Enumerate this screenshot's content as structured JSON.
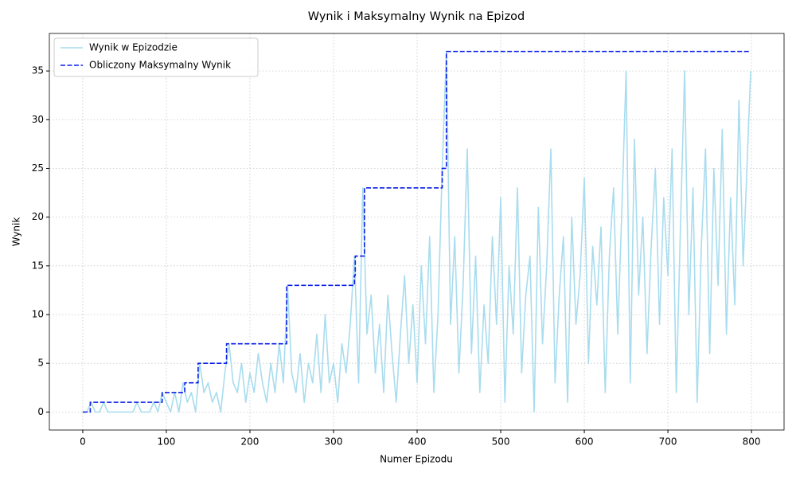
{
  "chart_data": {
    "type": "line",
    "title": "Wynik i Maksymalny Wynik na Epizod",
    "xlabel": "Numer Epizodu",
    "ylabel": "Wynik",
    "xlim": [
      -39.95,
      838.95
    ],
    "ylim": [
      -1.85,
      38.85
    ],
    "xticks": [
      0,
      100,
      200,
      300,
      400,
      500,
      600,
      700,
      800
    ],
    "yticks": [
      0,
      5,
      10,
      15,
      20,
      25,
      30,
      35
    ],
    "grid": true,
    "legend": "upper left",
    "series": [
      {
        "name": "Wynik w Epizodzie",
        "color": "#a8dcee",
        "linestyle": "solid",
        "drawstyle": "default",
        "x": [
          0,
          5,
          10,
          15,
          20,
          25,
          30,
          35,
          40,
          45,
          50,
          55,
          60,
          65,
          70,
          75,
          80,
          85,
          90,
          95,
          100,
          105,
          110,
          115,
          120,
          125,
          130,
          135,
          140,
          145,
          150,
          155,
          160,
          165,
          170,
          175,
          180,
          185,
          190,
          195,
          200,
          205,
          210,
          215,
          220,
          225,
          230,
          235,
          240,
          245,
          250,
          255,
          260,
          265,
          270,
          275,
          280,
          285,
          290,
          295,
          300,
          305,
          310,
          315,
          320,
          325,
          330,
          335,
          340,
          345,
          350,
          355,
          360,
          365,
          370,
          375,
          380,
          385,
          390,
          395,
          400,
          405,
          410,
          415,
          420,
          425,
          430,
          435,
          440,
          445,
          450,
          455,
          460,
          465,
          470,
          475,
          480,
          485,
          490,
          495,
          500,
          505,
          510,
          515,
          520,
          525,
          530,
          535,
          540,
          545,
          550,
          555,
          560,
          565,
          570,
          575,
          580,
          585,
          590,
          595,
          600,
          605,
          610,
          615,
          620,
          625,
          630,
          635,
          640,
          645,
          650,
          655,
          660,
          665,
          670,
          675,
          680,
          685,
          690,
          695,
          700,
          705,
          710,
          715,
          720,
          725,
          730,
          735,
          740,
          745,
          750,
          755,
          760,
          765,
          770,
          775,
          780,
          785,
          790,
          795,
          799
        ],
        "values": [
          0,
          0,
          1,
          0,
          0,
          1,
          0,
          0,
          0,
          0,
          0,
          0,
          0,
          1,
          0,
          0,
          0,
          1,
          0,
          2,
          1,
          0,
          2,
          0,
          3,
          1,
          2,
          0,
          5,
          2,
          3,
          1,
          2,
          0,
          4,
          7,
          3,
          2,
          5,
          1,
          4,
          2,
          6,
          3,
          1,
          5,
          2,
          7,
          3,
          13,
          4,
          2,
          6,
          1,
          5,
          3,
          8,
          2,
          10,
          3,
          5,
          1,
          7,
          4,
          9,
          16,
          3,
          23,
          8,
          12,
          4,
          9,
          2,
          12,
          6,
          1,
          8,
          14,
          5,
          11,
          3,
          15,
          7,
          18,
          2,
          10,
          25,
          37,
          9,
          18,
          4,
          13,
          27,
          6,
          16,
          2,
          11,
          5,
          18,
          9,
          22,
          1,
          15,
          8,
          23,
          4,
          12,
          16,
          0,
          21,
          7,
          15,
          27,
          3,
          12,
          18,
          1,
          20,
          9,
          14,
          24,
          5,
          17,
          11,
          19,
          2,
          16,
          23,
          8,
          21,
          35,
          3,
          28,
          12,
          20,
          6,
          17,
          25,
          9,
          22,
          14,
          27,
          2,
          19,
          35,
          10,
          23,
          1,
          17,
          27,
          6,
          25,
          13,
          29,
          8,
          22,
          11,
          32,
          15,
          26,
          35
        ]
      },
      {
        "name": "Obliczony Maksymalny Wynik",
        "color": "#0a1fe8",
        "linestyle": "dashed",
        "drawstyle": "steps-post",
        "x": [
          0,
          9,
          95,
          122,
          138,
          172,
          244,
          325,
          326,
          337,
          430,
          435,
          799
        ],
        "values": [
          0,
          1,
          2,
          3,
          5,
          7,
          13,
          14,
          16,
          23,
          25,
          37,
          37
        ]
      }
    ]
  }
}
